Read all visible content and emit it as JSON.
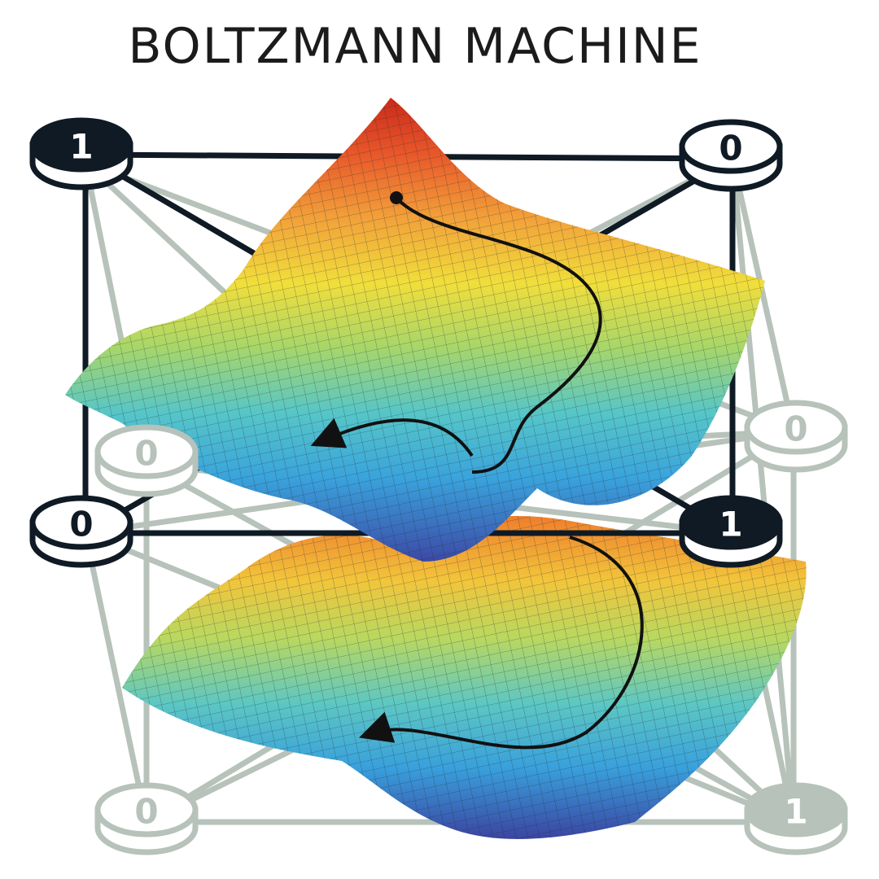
{
  "title": "BOLTZMANN MACHINE",
  "colors": {
    "dark": "#0f1a24",
    "ghost": "#b6c2ba",
    "surface_low": "#3f4fae",
    "surface_mid": "#3bb4d6",
    "surface_mid2": "#9ed46a",
    "surface_high": "#f4e13a",
    "surface_peak": "#d8361c"
  },
  "nodes": [
    {
      "id": "top-left",
      "layer": "front",
      "value": "1",
      "state": "on"
    },
    {
      "id": "top-right",
      "layer": "front",
      "value": "0",
      "state": "off"
    },
    {
      "id": "mid-left",
      "layer": "front",
      "value": "0",
      "state": "off"
    },
    {
      "id": "mid-right",
      "layer": "front",
      "value": "1",
      "state": "on"
    },
    {
      "id": "back-right",
      "layer": "back",
      "value": "0",
      "state": "off"
    },
    {
      "id": "back-left",
      "layer": "back",
      "value": "0",
      "state": "off"
    },
    {
      "id": "bottom-left",
      "layer": "back",
      "value": "0",
      "state": "off"
    },
    {
      "id": "bottom-right",
      "layer": "back",
      "value": "1",
      "state": "on"
    }
  ]
}
